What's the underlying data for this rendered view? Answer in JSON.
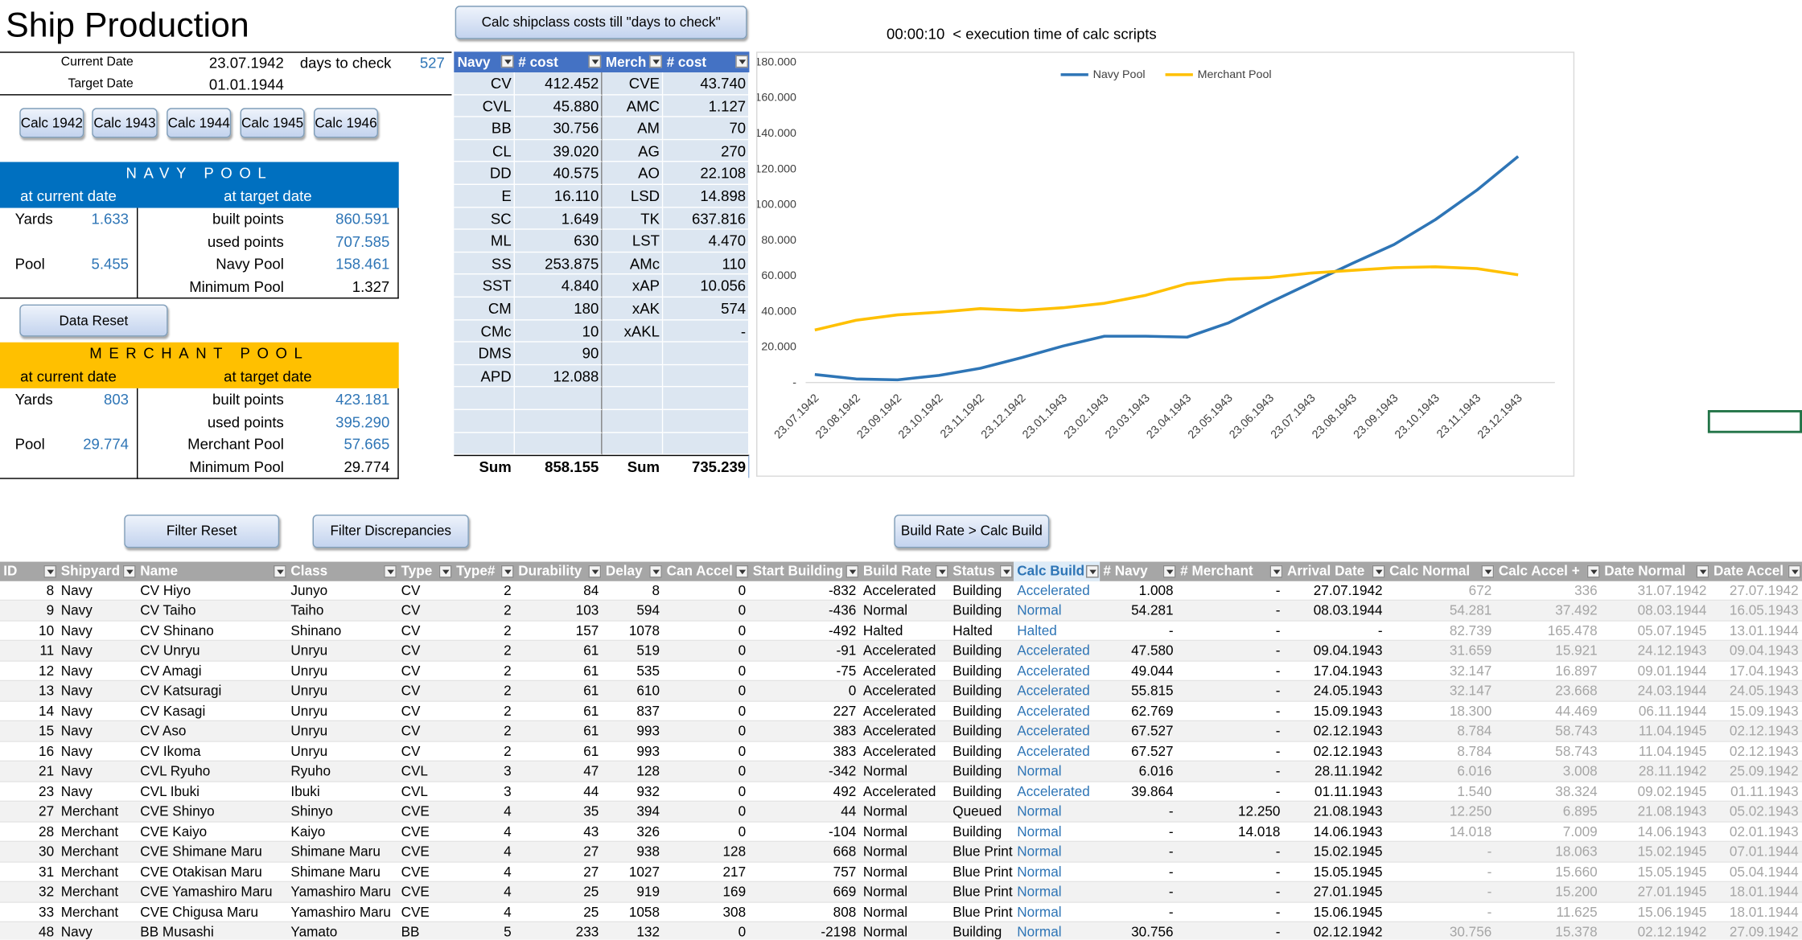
{
  "title": "Ship Production",
  "dates": {
    "current_label": "Current Date",
    "current": "23.07.1942",
    "days_label": "days to check",
    "days": "527",
    "target_label": "Target Date",
    "target": "01.01.1944"
  },
  "buttons": {
    "calc_years": [
      "Calc 1942",
      "Calc 1943",
      "Calc 1944",
      "Calc 1945",
      "Calc 1946"
    ],
    "data_reset": "Data Reset",
    "calc_costs": "Calc shipclass costs till \"days to check\"",
    "filter_reset": "Filter Reset",
    "filter_discrepancies": "Filter Discrepancies",
    "build_rate": "Build Rate > Calc Build"
  },
  "execution": {
    "time": "00:00:10",
    "note": "< execution time of calc scripts"
  },
  "navy_pool": {
    "title": "NAVY POOL",
    "sub": [
      "at current date",
      "at target date"
    ],
    "rows": [
      {
        "label": "Yards",
        "value": "1.633",
        "target_label": "built points",
        "target_value": "860.591"
      },
      {
        "target_label": "used points",
        "target_value": "707.585"
      },
      {
        "label": "Pool",
        "value": "5.455",
        "target_label": "Navy Pool",
        "target_value": "158.461"
      },
      {
        "target_label": "Minimum Pool",
        "target_value": "1.327"
      }
    ]
  },
  "merchant_pool": {
    "title": "MERCHANT POOL",
    "sub": [
      "at current date",
      "at target date"
    ],
    "rows": [
      {
        "label": "Yards",
        "value": "803",
        "target_label": "built points",
        "target_value": "423.181"
      },
      {
        "target_label": "used points",
        "target_value": "395.290"
      },
      {
        "label": "Pool",
        "value": "29.774",
        "target_label": "Merchant Pool",
        "target_value": "57.665"
      },
      {
        "target_label": "Minimum Pool",
        "target_value": "29.774"
      }
    ]
  },
  "cost_table": {
    "header": [
      "Navy",
      "# cost",
      "Merch",
      "# cost"
    ],
    "rows": [
      [
        "CV",
        "412.452",
        "CVE",
        "43.740"
      ],
      [
        "CVL",
        "45.880",
        "AMC",
        "1.127"
      ],
      [
        "BB",
        "30.756",
        "AM",
        "70"
      ],
      [
        "CL",
        "39.020",
        "AG",
        "270"
      ],
      [
        "DD",
        "40.575",
        "AO",
        "22.108"
      ],
      [
        "E",
        "16.110",
        "LSD",
        "14.898"
      ],
      [
        "SC",
        "1.649",
        "TK",
        "637.816"
      ],
      [
        "ML",
        "630",
        "LST",
        "4.470"
      ],
      [
        "SS",
        "253.875",
        "AMc",
        "110"
      ],
      [
        "SST",
        "4.840",
        "xAP",
        "10.056"
      ],
      [
        "CM",
        "180",
        "xAK",
        "574"
      ],
      [
        "CMc",
        "10",
        "xAKL",
        "-"
      ],
      [
        "DMS",
        "90"
      ],
      [
        "APD",
        "12.088"
      ]
    ],
    "sum": [
      "Sum",
      "858.155",
      "Sum",
      "735.239"
    ]
  },
  "chart_data": {
    "type": "line",
    "categories": [
      "23.07.1942",
      "23.08.1942",
      "23.09.1942",
      "23.10.1942",
      "23.11.1942",
      "23.12.1942",
      "23.01.1943",
      "23.02.1943",
      "23.03.1943",
      "23.04.1943",
      "23.05.1943",
      "23.06.1943",
      "23.07.1943",
      "23.08.1943",
      "23.09.1943",
      "23.10.1943",
      "23.11.1943",
      "23.12.1943"
    ],
    "series": [
      {
        "name": "Navy Pool",
        "color": "#2e75b6",
        "values": [
          4500,
          2000,
          1500,
          4000,
          8000,
          14000,
          20500,
          26000,
          26000,
          25500,
          33500,
          45000,
          56000,
          67000,
          77500,
          91500,
          108000,
          127000
        ]
      },
      {
        "name": "Merchant Pool",
        "color": "#ffc000",
        "values": [
          29500,
          35000,
          38000,
          39500,
          41500,
          40500,
          42000,
          44500,
          49000,
          55500,
          58000,
          59000,
          61500,
          63000,
          64500,
          65000,
          64000,
          60500
        ]
      }
    ],
    "ylim": [
      0,
      180000
    ],
    "yticks": [
      {
        "value": 0,
        "label": "-"
      },
      {
        "value": 20000,
        "label": "20.000"
      },
      {
        "value": 40000,
        "label": "40.000"
      },
      {
        "value": 60000,
        "label": "60.000"
      },
      {
        "value": 80000,
        "label": "80.000"
      },
      {
        "value": 100000,
        "label": "100.000"
      },
      {
        "value": 120000,
        "label": "120.000"
      },
      {
        "value": 140000,
        "label": "140.000"
      },
      {
        "value": 160000,
        "label": "160.000"
      },
      {
        "value": 180000,
        "label": "180.000"
      }
    ],
    "grid": false,
    "legend": "top"
  },
  "table": {
    "columns": [
      "ID",
      "Shipyard",
      "Name",
      "Class",
      "Type",
      "Type#",
      "Durability",
      "Delay",
      "Can Accel",
      "Start Building",
      "Build Rate",
      "Status",
      "Calc Build",
      "# Navy",
      "# Merchant",
      "Arrival Date",
      "Calc Normal",
      "Calc Accel +",
      "Date Normal",
      "Date Accel"
    ],
    "rows": [
      [
        "8",
        "Navy",
        "CV Hiyo",
        "Junyo",
        "CV",
        "2",
        "84",
        "8",
        "0",
        "-832",
        "Accelerated",
        "Building",
        "Accelerated",
        "1.008",
        "-",
        "27.07.1942",
        "672",
        "336",
        "31.07.1942",
        "27.07.1942"
      ],
      [
        "9",
        "Navy",
        "CV Taiho",
        "Taiho",
        "CV",
        "2",
        "103",
        "594",
        "0",
        "-436",
        "Normal",
        "Building",
        "Normal",
        "54.281",
        "-",
        "08.03.1944",
        "54.281",
        "37.492",
        "08.03.1944",
        "16.05.1943"
      ],
      [
        "10",
        "Navy",
        "CV Shinano",
        "Shinano",
        "CV",
        "2",
        "157",
        "1078",
        "0",
        "-492",
        "Halted",
        "Halted",
        "Halted",
        "-",
        "-",
        "-",
        "82.739",
        "165.478",
        "05.07.1945",
        "13.01.1944"
      ],
      [
        "11",
        "Navy",
        "CV Unryu",
        "Unryu",
        "CV",
        "2",
        "61",
        "519",
        "0",
        "-91",
        "Accelerated",
        "Building",
        "Accelerated",
        "47.580",
        "-",
        "09.04.1943",
        "31.659",
        "15.921",
        "24.12.1943",
        "09.04.1943"
      ],
      [
        "12",
        "Navy",
        "CV Amagi",
        "Unryu",
        "CV",
        "2",
        "61",
        "535",
        "0",
        "-75",
        "Accelerated",
        "Building",
        "Accelerated",
        "49.044",
        "-",
        "17.04.1943",
        "32.147",
        "16.897",
        "09.01.1944",
        "17.04.1943"
      ],
      [
        "13",
        "Navy",
        "CV Katsuragi",
        "Unryu",
        "CV",
        "2",
        "61",
        "610",
        "0",
        "0",
        "Accelerated",
        "Building",
        "Accelerated",
        "55.815",
        "-",
        "24.05.1943",
        "32.147",
        "23.668",
        "24.03.1944",
        "24.05.1943"
      ],
      [
        "14",
        "Navy",
        "CV Kasagi",
        "Unryu",
        "CV",
        "2",
        "61",
        "837",
        "0",
        "227",
        "Accelerated",
        "Building",
        "Accelerated",
        "62.769",
        "-",
        "15.09.1943",
        "18.300",
        "44.469",
        "06.11.1944",
        "15.09.1943"
      ],
      [
        "15",
        "Navy",
        "CV Aso",
        "Unryu",
        "CV",
        "2",
        "61",
        "993",
        "0",
        "383",
        "Accelerated",
        "Building",
        "Accelerated",
        "67.527",
        "-",
        "02.12.1943",
        "8.784",
        "58.743",
        "11.04.1945",
        "02.12.1943"
      ],
      [
        "16",
        "Navy",
        "CV Ikoma",
        "Unryu",
        "CV",
        "2",
        "61",
        "993",
        "0",
        "383",
        "Accelerated",
        "Building",
        "Accelerated",
        "67.527",
        "-",
        "02.12.1943",
        "8.784",
        "58.743",
        "11.04.1945",
        "02.12.1943"
      ],
      [
        "21",
        "Navy",
        "CVL Ryuho",
        "Ryuho",
        "CVL",
        "3",
        "47",
        "128",
        "0",
        "-342",
        "Normal",
        "Building",
        "Normal",
        "6.016",
        "-",
        "28.11.1942",
        "6.016",
        "3.008",
        "28.11.1942",
        "25.09.1942"
      ],
      [
        "23",
        "Navy",
        "CVL Ibuki",
        "Ibuki",
        "CVL",
        "3",
        "44",
        "932",
        "0",
        "492",
        "Accelerated",
        "Building",
        "Accelerated",
        "39.864",
        "-",
        "01.11.1943",
        "1.540",
        "38.324",
        "09.02.1945",
        "01.11.1943"
      ],
      [
        "27",
        "Merchant",
        "CVE Shinyo",
        "Shinyo",
        "CVE",
        "4",
        "35",
        "394",
        "0",
        "44",
        "Normal",
        "Queued",
        "Normal",
        "-",
        "12.250",
        "21.08.1943",
        "12.250",
        "6.895",
        "21.08.1943",
        "05.02.1943"
      ],
      [
        "28",
        "Merchant",
        "CVE Kaiyo",
        "Kaiyo",
        "CVE",
        "4",
        "43",
        "326",
        "0",
        "-104",
        "Normal",
        "Building",
        "Normal",
        "-",
        "14.018",
        "14.06.1943",
        "14.018",
        "7.009",
        "14.06.1943",
        "02.01.1943"
      ],
      [
        "30",
        "Merchant",
        "CVE Shimane Maru",
        "Shimane Maru",
        "CVE",
        "4",
        "27",
        "938",
        "128",
        "668",
        "Normal",
        "Blue Print",
        "Normal",
        "-",
        "-",
        "15.02.1945",
        "-",
        "18.063",
        "15.02.1945",
        "07.01.1944"
      ],
      [
        "31",
        "Merchant",
        "CVE Otakisan Maru",
        "Shimane Maru",
        "CVE",
        "4",
        "27",
        "1027",
        "217",
        "757",
        "Normal",
        "Blue Print",
        "Normal",
        "-",
        "-",
        "15.05.1945",
        "-",
        "15.660",
        "15.05.1945",
        "05.04.1944"
      ],
      [
        "32",
        "Merchant",
        "CVE Yamashiro Maru",
        "Yamashiro Maru",
        "CVE",
        "4",
        "25",
        "919",
        "169",
        "669",
        "Normal",
        "Blue Print",
        "Normal",
        "-",
        "-",
        "27.01.1945",
        "-",
        "15.200",
        "27.01.1945",
        "18.01.1944"
      ],
      [
        "33",
        "Merchant",
        "CVE Chigusa Maru",
        "Yamashiro Maru",
        "CVE",
        "4",
        "25",
        "1058",
        "308",
        "808",
        "Normal",
        "Blue Print",
        "Normal",
        "-",
        "-",
        "15.06.1945",
        "-",
        "11.625",
        "15.06.1945",
        "18.01.1944"
      ],
      [
        "48",
        "Navy",
        "BB Musashi",
        "Yamato",
        "BB",
        "5",
        "233",
        "132",
        "0",
        "-2198",
        "Normal",
        "Building",
        "Normal",
        "30.756",
        "-",
        "02.12.1942",
        "30.756",
        "15.378",
        "02.12.1942",
        "27.09.1942"
      ]
    ]
  }
}
